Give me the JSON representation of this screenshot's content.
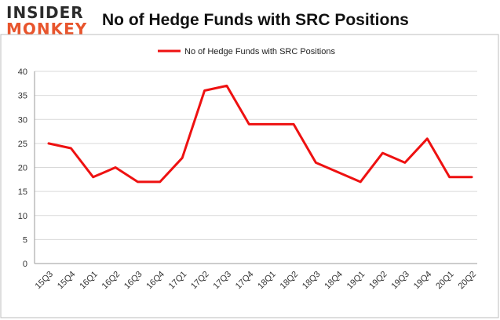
{
  "logo": {
    "line1": "INSIDER",
    "line2": "MONKEY"
  },
  "chart_data": {
    "type": "line",
    "title": "No of Hedge Funds with SRC Positions",
    "xlabel": "",
    "ylabel": "",
    "categories": [
      "15Q3",
      "15Q4",
      "16Q1",
      "16Q2",
      "16Q3",
      "16Q4",
      "17Q1",
      "17Q2",
      "17Q3",
      "17Q4",
      "18Q1",
      "18Q2",
      "18Q3",
      "18Q4",
      "19Q1",
      "19Q2",
      "19Q3",
      "19Q4",
      "20Q1",
      "20Q2"
    ],
    "series": [
      {
        "name": "No of Hedge Funds with SRC Positions",
        "color": "#ee1111",
        "values": [
          25,
          24,
          18,
          20,
          17,
          17,
          22,
          36,
          37,
          29,
          29,
          29,
          21,
          19,
          17,
          23,
          21,
          26,
          18,
          18
        ]
      }
    ],
    "ylim": [
      0,
      40
    ],
    "yticks": [
      0,
      5,
      10,
      15,
      20,
      25,
      30,
      35,
      40
    ],
    "grid": true,
    "legend": "top-center"
  }
}
